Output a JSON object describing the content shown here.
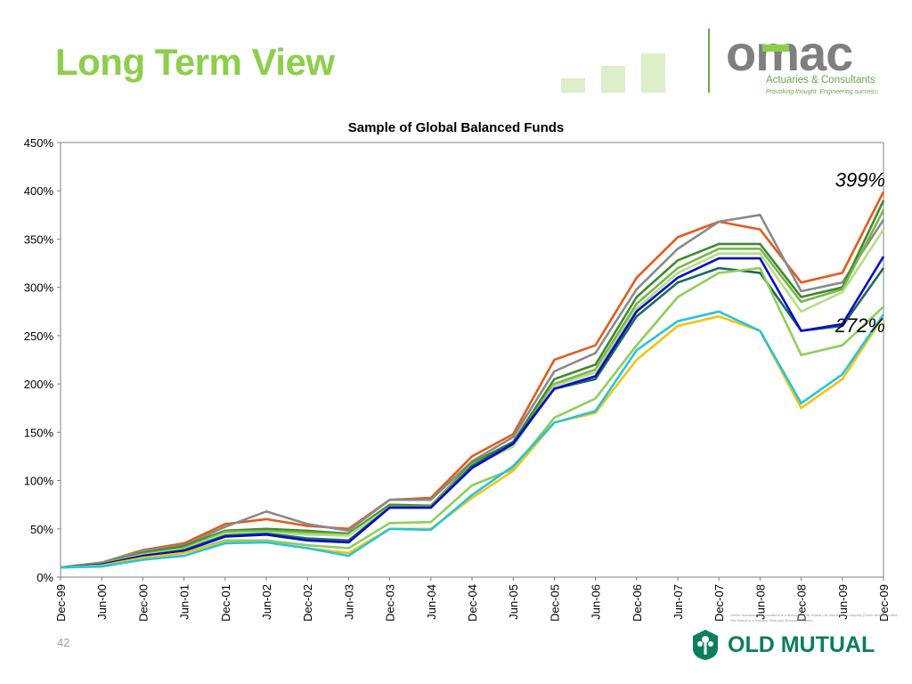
{
  "slide": {
    "title": "Long Term View",
    "page_number": "42"
  },
  "omac": {
    "logo_text_pre": "o",
    "logo_text_m": "m",
    "logo_text_post": "ac",
    "subtitle": "Actuaries & Consultants",
    "tagline": "Provoking thought. Engineering success.",
    "fineprint": "OMAC Actuaries & Consultants is a division of Old Mutual Life Assurance Company (South Africa) Limited. Old Mutual is a licensed Financial Services Provider."
  },
  "old_mutual": {
    "name": "OLD MUTUAL"
  },
  "colors": {
    "title_green": "#8ccf4a",
    "om_green": "#0b7f5d"
  },
  "chart_data": {
    "type": "line",
    "title": "Sample of Global Balanced Funds",
    "xlabel": "",
    "ylabel": "",
    "ylim": [
      0,
      450
    ],
    "ytick_labels": [
      "0%",
      "50%",
      "100%",
      "150%",
      "200%",
      "250%",
      "300%",
      "350%",
      "400%",
      "450%"
    ],
    "categories": [
      "Dec-99",
      "Jun-00",
      "Dec-00",
      "Jun-01",
      "Dec-01",
      "Jun-02",
      "Dec-02",
      "Jun-03",
      "Dec-03",
      "Jun-04",
      "Dec-04",
      "Jun-05",
      "Dec-05",
      "Jun-06",
      "Dec-06",
      "Jun-07",
      "Dec-07",
      "Jun-08",
      "Dec-08",
      "Jun-09",
      "Dec-09"
    ],
    "annotations": [
      {
        "text": "399%",
        "x": "Dec-09",
        "y": 399
      },
      {
        "text": "272%",
        "x": "Dec-09",
        "y": 272
      }
    ],
    "grid": false,
    "legend": "none",
    "series": [
      {
        "color": "#e55a1c",
        "values": [
          10,
          15,
          28,
          35,
          55,
          60,
          53,
          50,
          80,
          82,
          125,
          148,
          225,
          240,
          310,
          352,
          368,
          360,
          305,
          315,
          399
        ]
      },
      {
        "color": "#8a8a8a",
        "values": [
          10,
          15,
          27,
          33,
          52,
          68,
          55,
          48,
          80,
          80,
          120,
          145,
          213,
          232,
          298,
          340,
          368,
          375,
          296,
          305,
          370
        ]
      },
      {
        "color": "#3d8a2e",
        "values": [
          10,
          14,
          25,
          32,
          48,
          50,
          48,
          45,
          75,
          74,
          118,
          140,
          205,
          220,
          290,
          328,
          345,
          345,
          290,
          300,
          390
        ]
      },
      {
        "color": "#7ab648",
        "values": [
          10,
          14,
          24,
          30,
          47,
          48,
          46,
          44,
          73,
          73,
          117,
          137,
          200,
          215,
          283,
          320,
          340,
          340,
          285,
          298,
          380
        ]
      },
      {
        "color": "#b5dd8a",
        "values": [
          10,
          13,
          23,
          29,
          45,
          46,
          44,
          43,
          72,
          72,
          115,
          135,
          198,
          212,
          278,
          315,
          335,
          335,
          275,
          295,
          360
        ]
      },
      {
        "color": "#1b6b5a",
        "values": [
          10,
          13,
          22,
          28,
          43,
          45,
          40,
          38,
          72,
          72,
          115,
          140,
          195,
          205,
          270,
          305,
          320,
          315,
          255,
          260,
          320
        ]
      },
      {
        "color": "#0a0acc",
        "values": [
          10,
          13,
          22,
          27,
          42,
          44,
          38,
          36,
          72,
          72,
          113,
          138,
          195,
          208,
          275,
          310,
          330,
          330,
          255,
          262,
          332
        ]
      },
      {
        "color": "#8fce5a",
        "values": [
          10,
          12,
          20,
          25,
          38,
          38,
          33,
          30,
          56,
          57,
          95,
          112,
          165,
          185,
          240,
          290,
          315,
          320,
          230,
          240,
          280
        ]
      },
      {
        "color": "#f2c40f",
        "values": [
          10,
          12,
          20,
          25,
          36,
          36,
          30,
          25,
          50,
          50,
          82,
          110,
          160,
          170,
          225,
          260,
          270,
          255,
          175,
          205,
          270
        ]
      },
      {
        "color": "#25c4e0",
        "values": [
          10,
          11,
          18,
          22,
          35,
          36,
          30,
          22,
          50,
          49,
          85,
          115,
          160,
          172,
          235,
          265,
          275,
          255,
          180,
          210,
          272
        ]
      }
    ]
  }
}
